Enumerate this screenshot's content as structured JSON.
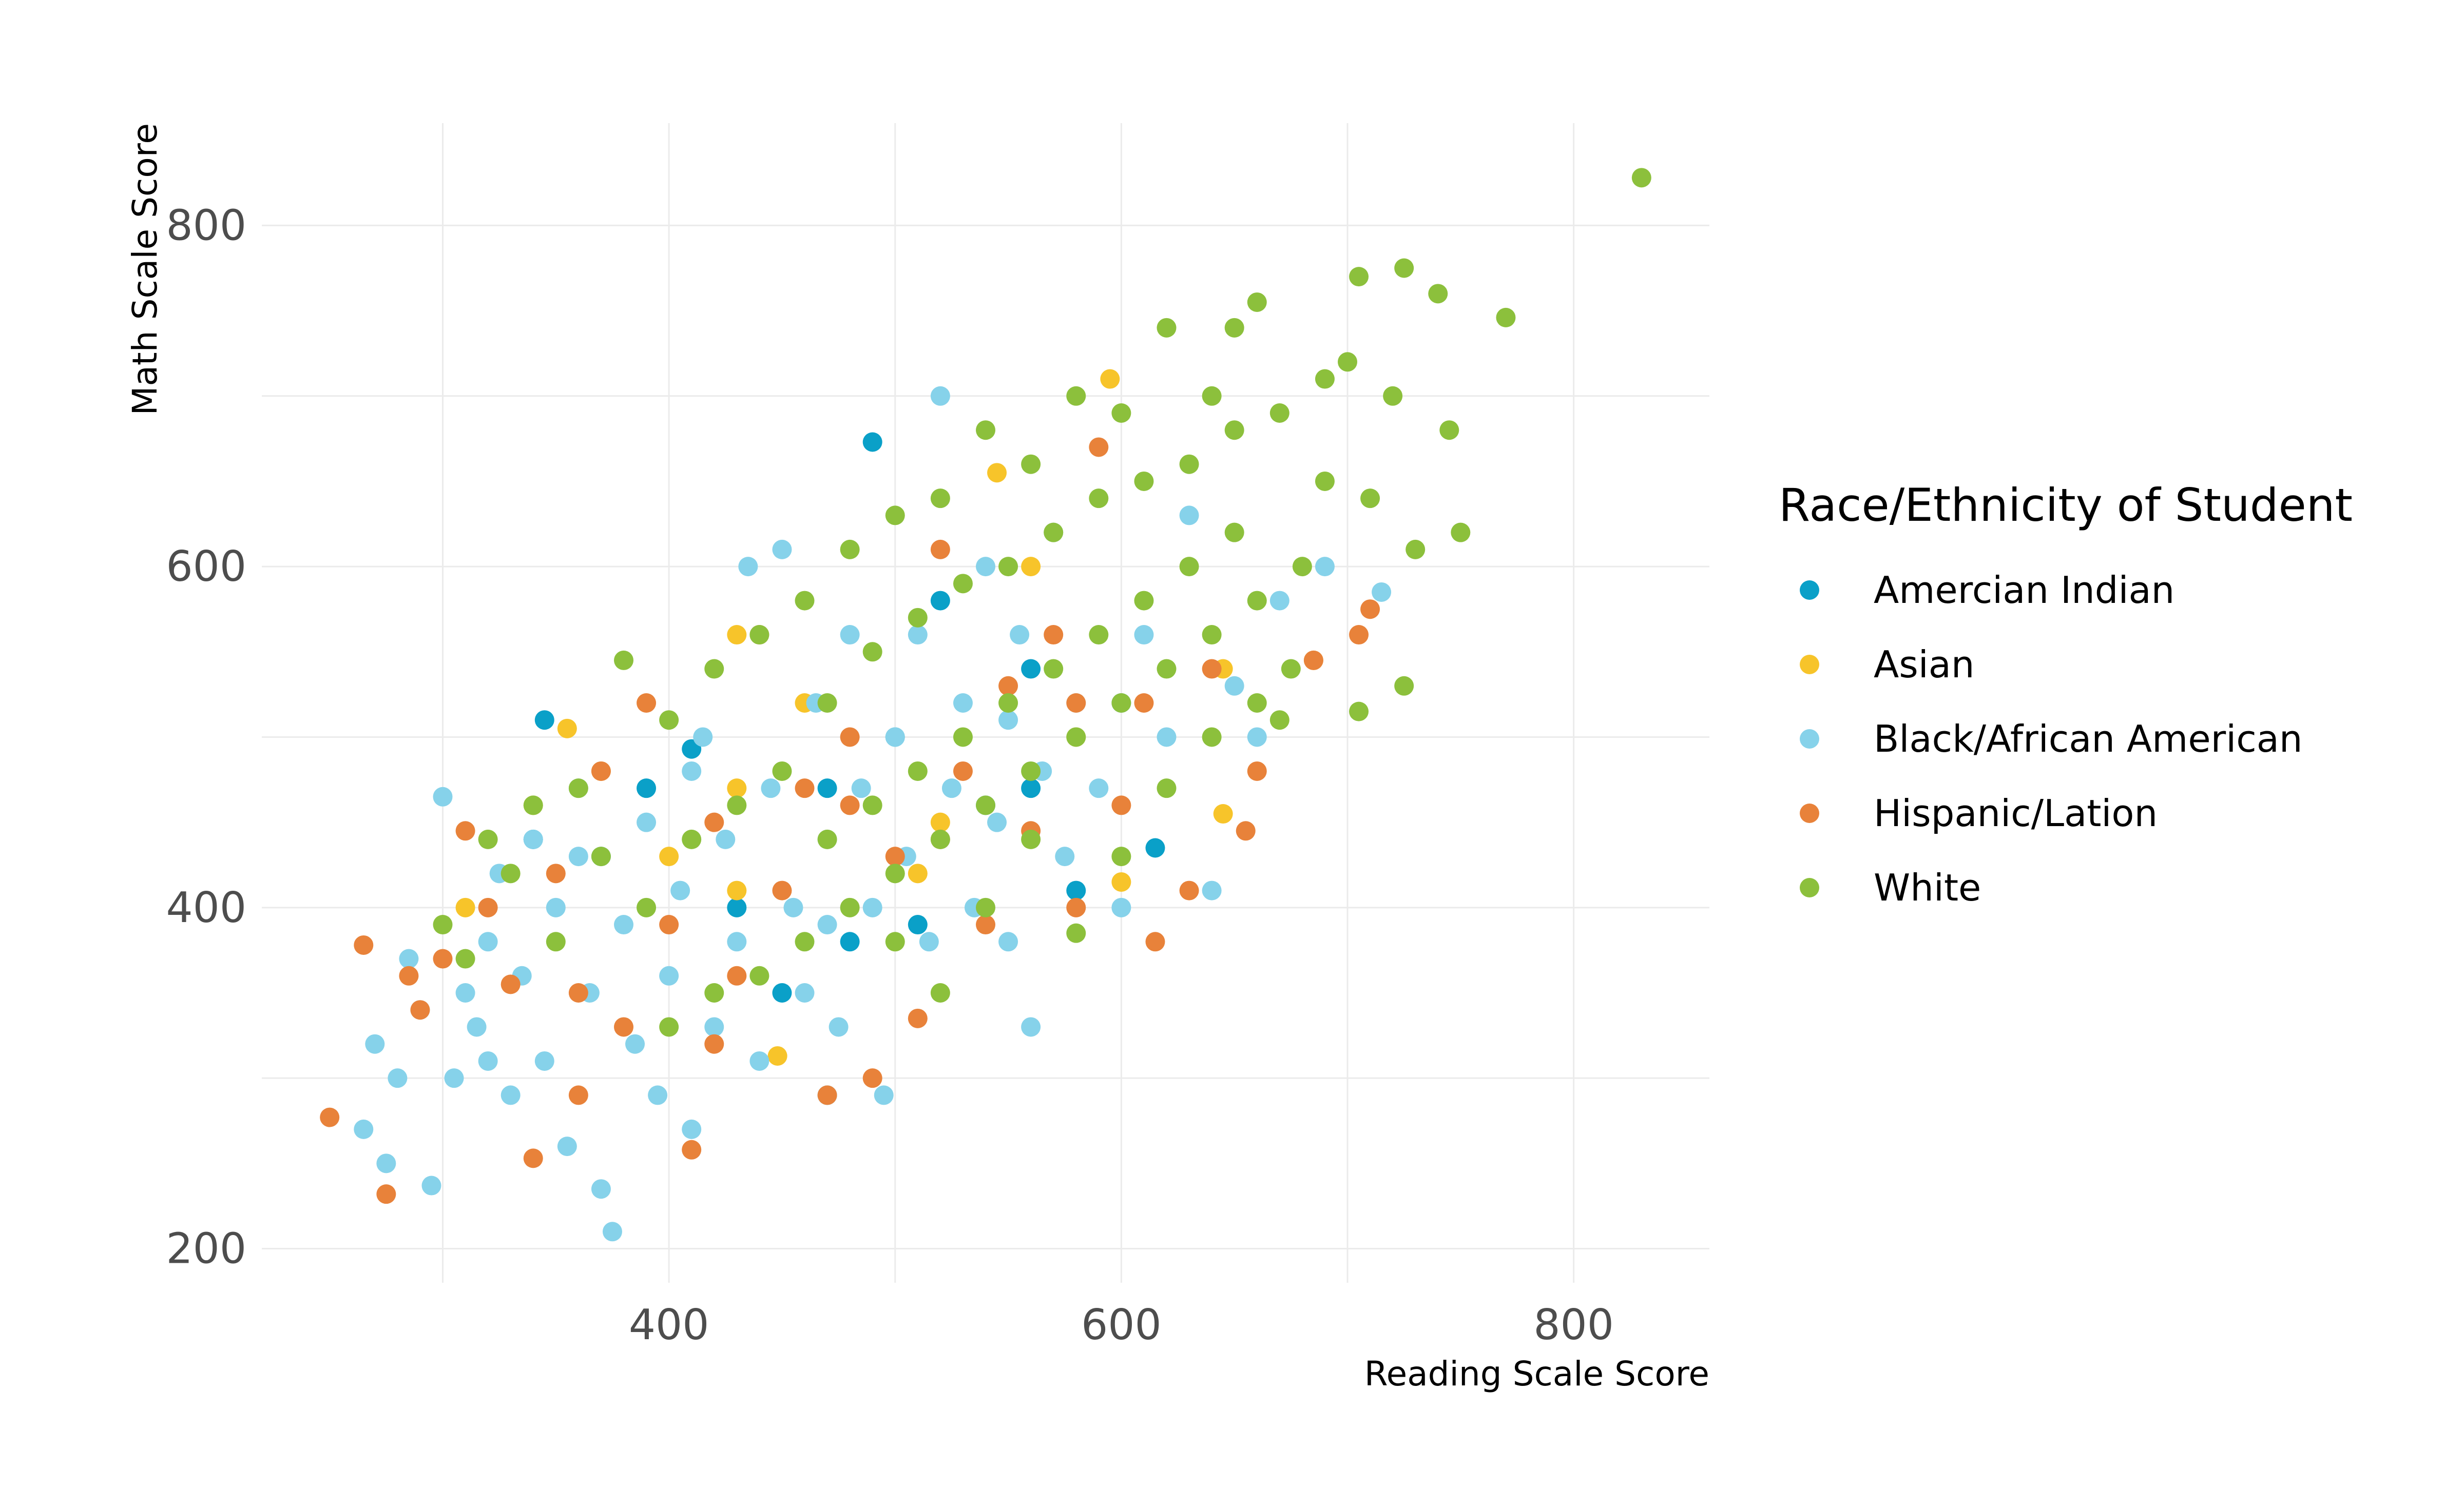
{
  "chart_data": {
    "type": "scatter",
    "title": "",
    "xlabel": "Reading Scale Score",
    "ylabel": "Math Scale Score",
    "xlim": [
      220,
      860
    ],
    "ylim": [
      180,
      860
    ],
    "x_ticks": [
      400,
      600,
      800
    ],
    "y_ticks": [
      200,
      400,
      600,
      800
    ],
    "x_tick_labels": [
      "400",
      "600",
      "800"
    ],
    "y_tick_labels": [
      "200",
      "400",
      "600",
      "800"
    ],
    "grid": true,
    "legend": {
      "title": "Race/Ethnicity of Student",
      "position": "right"
    },
    "series": [
      {
        "name": "Amercian Indian",
        "color": "#0aa0c8",
        "points": [
          [
            490,
            673
          ],
          [
            345,
            510
          ],
          [
            410,
            493
          ],
          [
            390,
            470
          ],
          [
            470,
            470
          ],
          [
            500,
            500
          ],
          [
            560,
            470
          ],
          [
            520,
            580
          ],
          [
            615,
            435
          ],
          [
            580,
            410
          ],
          [
            470,
            290
          ],
          [
            510,
            390
          ],
          [
            340,
            440
          ],
          [
            430,
            400
          ],
          [
            450,
            350
          ],
          [
            540,
            460
          ],
          [
            600,
            520
          ],
          [
            370,
            430
          ],
          [
            480,
            380
          ],
          [
            560,
            540
          ]
        ]
      },
      {
        "name": "Asian",
        "color": "#f7c42a",
        "points": [
          [
            595,
            710
          ],
          [
            545,
            655
          ],
          [
            430,
            560
          ],
          [
            355,
            505
          ],
          [
            310,
            400
          ],
          [
            370,
            480
          ],
          [
            430,
            470
          ],
          [
            430,
            410
          ],
          [
            448,
            313
          ],
          [
            510,
            420
          ],
          [
            600,
            415
          ],
          [
            645,
            455
          ],
          [
            645,
            540
          ],
          [
            685,
            545
          ],
          [
            580,
            500
          ],
          [
            520,
            450
          ],
          [
            460,
            520
          ],
          [
            400,
            430
          ],
          [
            340,
            460
          ],
          [
            560,
            600
          ]
        ]
      },
      {
        "name": "Black/African American",
        "color": "#86d2ea",
        "points": [
          [
            265,
            270
          ],
          [
            275,
            250
          ],
          [
            270,
            320
          ],
          [
            285,
            370
          ],
          [
            295,
            237
          ],
          [
            300,
            465
          ],
          [
            305,
            300
          ],
          [
            310,
            350
          ],
          [
            315,
            330
          ],
          [
            320,
            380
          ],
          [
            325,
            420
          ],
          [
            330,
            290
          ],
          [
            335,
            360
          ],
          [
            340,
            440
          ],
          [
            345,
            310
          ],
          [
            350,
            400
          ],
          [
            355,
            260
          ],
          [
            360,
            470
          ],
          [
            365,
            350
          ],
          [
            370,
            235
          ],
          [
            375,
            210
          ],
          [
            380,
            390
          ],
          [
            385,
            320
          ],
          [
            390,
            450
          ],
          [
            395,
            290
          ],
          [
            400,
            360
          ],
          [
            405,
            410
          ],
          [
            410,
            270
          ],
          [
            415,
            500
          ],
          [
            420,
            330
          ],
          [
            425,
            440
          ],
          [
            430,
            380
          ],
          [
            435,
            600
          ],
          [
            440,
            310
          ],
          [
            445,
            470
          ],
          [
            450,
            610
          ],
          [
            455,
            400
          ],
          [
            460,
            350
          ],
          [
            465,
            520
          ],
          [
            470,
            440
          ],
          [
            475,
            330
          ],
          [
            480,
            560
          ],
          [
            485,
            470
          ],
          [
            490,
            400
          ],
          [
            495,
            290
          ],
          [
            500,
            500
          ],
          [
            505,
            430
          ],
          [
            510,
            560
          ],
          [
            515,
            380
          ],
          [
            520,
            700
          ],
          [
            525,
            470
          ],
          [
            530,
            520
          ],
          [
            535,
            400
          ],
          [
            540,
            600
          ],
          [
            545,
            450
          ],
          [
            550,
            510
          ],
          [
            555,
            560
          ],
          [
            560,
            330
          ],
          [
            565,
            480
          ],
          [
            570,
            620
          ],
          [
            575,
            430
          ],
          [
            580,
            520
          ],
          [
            590,
            470
          ],
          [
            600,
            400
          ],
          [
            610,
            560
          ],
          [
            620,
            500
          ],
          [
            630,
            630
          ],
          [
            640,
            410
          ],
          [
            650,
            530
          ],
          [
            670,
            580
          ],
          [
            690,
            600
          ],
          [
            715,
            585
          ],
          [
            660,
            500
          ],
          [
            550,
            380
          ],
          [
            470,
            390
          ],
          [
            410,
            480
          ],
          [
            360,
            430
          ],
          [
            320,
            310
          ],
          [
            290,
            340
          ],
          [
            280,
            300
          ]
        ]
      },
      {
        "name": "Hispanic/Lation",
        "color": "#e8823a",
        "points": [
          [
            250,
            277
          ],
          [
            265,
            378
          ],
          [
            275,
            232
          ],
          [
            285,
            360
          ],
          [
            290,
            340
          ],
          [
            300,
            370
          ],
          [
            310,
            445
          ],
          [
            320,
            400
          ],
          [
            330,
            355
          ],
          [
            340,
            253
          ],
          [
            350,
            420
          ],
          [
            360,
            290
          ],
          [
            370,
            480
          ],
          [
            380,
            330
          ],
          [
            390,
            520
          ],
          [
            400,
            390
          ],
          [
            410,
            258
          ],
          [
            420,
            450
          ],
          [
            430,
            360
          ],
          [
            440,
            560
          ],
          [
            450,
            410
          ],
          [
            460,
            470
          ],
          [
            470,
            290
          ],
          [
            480,
            500
          ],
          [
            490,
            300
          ],
          [
            500,
            430
          ],
          [
            510,
            335
          ],
          [
            520,
            610
          ],
          [
            530,
            480
          ],
          [
            540,
            390
          ],
          [
            550,
            530
          ],
          [
            560,
            445
          ],
          [
            570,
            560
          ],
          [
            580,
            520
          ],
          [
            590,
            670
          ],
          [
            600,
            460
          ],
          [
            610,
            520
          ],
          [
            615,
            380
          ],
          [
            630,
            410
          ],
          [
            640,
            540
          ],
          [
            655,
            445
          ],
          [
            660,
            480
          ],
          [
            685,
            545
          ],
          [
            705,
            560
          ],
          [
            710,
            575
          ],
          [
            480,
            460
          ],
          [
            420,
            320
          ],
          [
            360,
            350
          ],
          [
            520,
            440
          ],
          [
            580,
            400
          ]
        ]
      },
      {
        "name": "White",
        "color": "#8cc03c",
        "points": [
          [
            830,
            828
          ],
          [
            725,
            775
          ],
          [
            770,
            746
          ],
          [
            740,
            760
          ],
          [
            705,
            770
          ],
          [
            700,
            720
          ],
          [
            660,
            755
          ],
          [
            720,
            700
          ],
          [
            690,
            710
          ],
          [
            745,
            680
          ],
          [
            750,
            620
          ],
          [
            705,
            515
          ],
          [
            725,
            530
          ],
          [
            670,
            510
          ],
          [
            675,
            540
          ],
          [
            650,
            740
          ],
          [
            640,
            700
          ],
          [
            620,
            740
          ],
          [
            600,
            690
          ],
          [
            580,
            700
          ],
          [
            560,
            660
          ],
          [
            540,
            680
          ],
          [
            520,
            640
          ],
          [
            500,
            630
          ],
          [
            480,
            610
          ],
          [
            460,
            580
          ],
          [
            440,
            560
          ],
          [
            420,
            540
          ],
          [
            400,
            510
          ],
          [
            380,
            545
          ],
          [
            360,
            470
          ],
          [
            340,
            460
          ],
          [
            320,
            440
          ],
          [
            310,
            370
          ],
          [
            300,
            390
          ],
          [
            330,
            420
          ],
          [
            350,
            380
          ],
          [
            370,
            430
          ],
          [
            390,
            400
          ],
          [
            410,
            440
          ],
          [
            430,
            460
          ],
          [
            450,
            480
          ],
          [
            470,
            520
          ],
          [
            490,
            550
          ],
          [
            510,
            570
          ],
          [
            530,
            590
          ],
          [
            550,
            600
          ],
          [
            570,
            620
          ],
          [
            590,
            640
          ],
          [
            610,
            650
          ],
          [
            630,
            660
          ],
          [
            650,
            680
          ],
          [
            670,
            690
          ],
          [
            690,
            650
          ],
          [
            710,
            640
          ],
          [
            730,
            610
          ],
          [
            680,
            600
          ],
          [
            660,
            580
          ],
          [
            640,
            560
          ],
          [
            620,
            540
          ],
          [
            600,
            520
          ],
          [
            580,
            500
          ],
          [
            560,
            480
          ],
          [
            540,
            460
          ],
          [
            520,
            440
          ],
          [
            500,
            420
          ],
          [
            480,
            400
          ],
          [
            460,
            380
          ],
          [
            440,
            360
          ],
          [
            420,
            350
          ],
          [
            400,
            330
          ],
          [
            600,
            430
          ],
          [
            620,
            470
          ],
          [
            640,
            500
          ],
          [
            660,
            520
          ],
          [
            580,
            385
          ],
          [
            560,
            440
          ],
          [
            540,
            400
          ],
          [
            520,
            350
          ],
          [
            500,
            380
          ],
          [
            630,
            600
          ],
          [
            650,
            620
          ],
          [
            610,
            580
          ],
          [
            590,
            560
          ],
          [
            570,
            540
          ],
          [
            550,
            520
          ],
          [
            530,
            500
          ],
          [
            510,
            480
          ],
          [
            490,
            460
          ],
          [
            470,
            440
          ]
        ]
      }
    ]
  }
}
